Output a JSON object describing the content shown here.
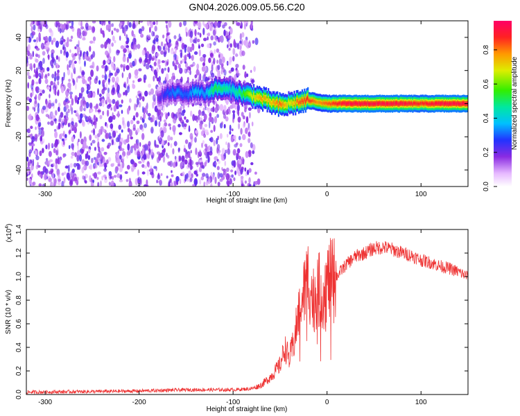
{
  "chart_data": [
    {
      "type": "heatmap",
      "title": "GN04.2026.009.05.56.C20",
      "xlabel": "Height of straight line (km)",
      "ylabel": "Frequency (Hz)",
      "xlim": [
        -320,
        150
      ],
      "ylim": [
        -50,
        50
      ],
      "x_ticks": [
        -300,
        -200,
        -100,
        0,
        100
      ],
      "x_tick_labels": [
        "-300",
        "-200",
        "-100",
        "0",
        "100"
      ],
      "y_ticks": [
        -40,
        -20,
        0,
        20,
        40
      ],
      "y_tick_labels": [
        "-40",
        "-20",
        "0",
        "20",
        "40"
      ],
      "noise_region_x": [
        -320,
        -85
      ],
      "ridge": {
        "x": [
          -180,
          -170,
          -160,
          -150,
          -140,
          -130,
          -120,
          -110,
          -100,
          -90,
          -80,
          -70,
          -60,
          -50,
          -40,
          -30,
          -20,
          -10,
          0,
          20,
          50,
          80,
          100,
          120,
          150
        ],
        "y": [
          4,
          6,
          7,
          5,
          8,
          6,
          9,
          9,
          8,
          6,
          5,
          3,
          1,
          -1,
          0,
          1,
          2,
          1,
          0,
          0,
          0,
          0,
          0,
          0,
          0
        ],
        "amplitude": [
          0.2,
          0.3,
          0.35,
          0.3,
          0.4,
          0.35,
          0.55,
          0.5,
          0.45,
          0.55,
          0.7,
          0.8,
          0.75,
          0.85,
          0.7,
          0.85,
          0.9,
          0.8,
          0.85,
          0.95,
          0.95,
          0.95,
          0.9,
          0.95,
          0.95
        ]
      },
      "colorbar": {
        "label": "Normalized spectral amplitude",
        "range": [
          0,
          0.97
        ],
        "ticks": [
          0.0,
          0.2,
          0.4,
          0.6,
          0.8
        ],
        "tick_labels": [
          "0.0",
          "0.2",
          "0.4",
          "0.6",
          "0.8"
        ]
      }
    },
    {
      "type": "line",
      "xlabel": "Height of straight line (km)",
      "ylabel": "SNR (10 * v/v)",
      "scale_label_base": "(x10",
      "scale_label_exp": "4",
      "scale_label_end": ")",
      "xlim": [
        -320,
        150
      ],
      "ylim": [
        0,
        1.4
      ],
      "x_ticks": [
        -300,
        -200,
        -100,
        0,
        100
      ],
      "x_tick_labels": [
        "-300",
        "-200",
        "-100",
        "0",
        "100"
      ],
      "y_ticks": [
        0.0,
        0.2,
        0.4,
        0.6,
        0.8,
        1.0,
        1.2,
        1.4
      ],
      "y_tick_labels": [
        "0.0",
        "0.2",
        "0.4",
        "0.6",
        "0.8",
        "1.0",
        "1.2",
        "1.4"
      ],
      "color": "#ee3333",
      "series": [
        {
          "name": "SNR",
          "x": [
            -320,
            -250,
            -200,
            -150,
            -120,
            -100,
            -80,
            -70,
            -60,
            -50,
            -45,
            -40,
            -35,
            -30,
            -25,
            -20,
            -15,
            -10,
            -5,
            0,
            10,
            20,
            30,
            40,
            50,
            60,
            70,
            80,
            90,
            100,
            110,
            120,
            130,
            140,
            150
          ],
          "y": [
            0.02,
            0.025,
            0.03,
            0.04,
            0.04,
            0.04,
            0.05,
            0.08,
            0.15,
            0.25,
            0.4,
            0.3,
            0.45,
            0.7,
            0.85,
            1.0,
            0.8,
            0.9,
            0.85,
            0.95,
            1.0,
            1.1,
            1.17,
            1.2,
            1.24,
            1.25,
            1.23,
            1.2,
            1.18,
            1.14,
            1.12,
            1.09,
            1.07,
            1.04,
            1.0
          ]
        }
      ]
    }
  ]
}
